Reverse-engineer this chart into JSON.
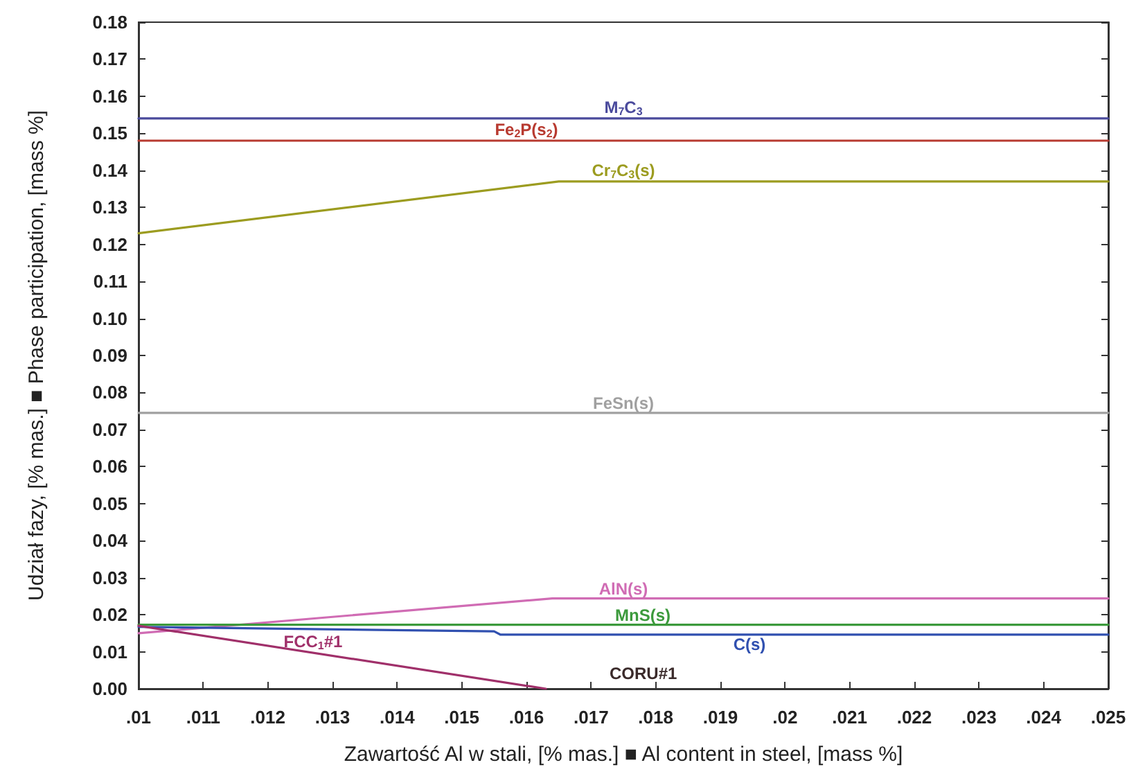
{
  "chart_data": {
    "type": "line",
    "xlabel": "Zawartość Al w stali, [% mas.] ■ Al content in steel, [mass %]",
    "ylabel": "Udział fazy, [% mas.] ■ Phase participation, [mass %]",
    "xlim": [
      0.01,
      0.025
    ],
    "xticks": [
      {
        "value": 0.01,
        "label": ".01"
      },
      {
        "value": 0.011,
        "label": ".011"
      },
      {
        "value": 0.012,
        "label": ".012"
      },
      {
        "value": 0.013,
        "label": ".013"
      },
      {
        "value": 0.014,
        "label": ".014"
      },
      {
        "value": 0.015,
        "label": ".015"
      },
      {
        "value": 0.016,
        "label": ".016"
      },
      {
        "value": 0.017,
        "label": ".017"
      },
      {
        "value": 0.018,
        "label": ".018"
      },
      {
        "value": 0.019,
        "label": ".019"
      },
      {
        "value": 0.02,
        "label": ".02"
      },
      {
        "value": 0.021,
        "label": ".021"
      },
      {
        "value": 0.022,
        "label": ".022"
      },
      {
        "value": 0.023,
        "label": ".023"
      },
      {
        "value": 0.024,
        "label": ".024"
      },
      {
        "value": 0.025,
        "label": ".025"
      }
    ],
    "ylim": [
      0,
      0.18
    ],
    "yticks": [
      {
        "value": 0,
        "label": "0.00"
      },
      0.01,
      0.02,
      0.03,
      0.04,
      0.05,
      0.06,
      0.07,
      0.08,
      0.09,
      {
        "value": 0.1,
        "label": "0.10"
      },
      0.11,
      0.12,
      0.13,
      0.14,
      0.15,
      0.16,
      0.17,
      0.18
    ],
    "grid": false,
    "legend": false,
    "marker": "none",
    "line_style": "solid",
    "series": [
      {
        "name": "M$_{7}$C$_{3}$",
        "color": "#4a4a9c",
        "x": [
          0.01,
          0.025
        ],
        "values": [
          0.154,
          0.154
        ]
      },
      {
        "name": "Fe$_{2}$P(s$_{2}$)",
        "color": "#b83a30",
        "x": [
          0.01,
          0.025
        ],
        "values": [
          0.148,
          0.148
        ]
      },
      {
        "name": "Cr$_{7}$C$_{3}$(s)",
        "color": "#9c9c20",
        "x": [
          0.01,
          0.0165,
          0.025
        ],
        "values": [
          0.123,
          0.137,
          0.137
        ]
      },
      {
        "name": "FeSn(s)",
        "color": "#a0a0a0",
        "x": [
          0.01,
          0.025
        ],
        "values": [
          0.0745,
          0.0745
        ]
      },
      {
        "name": "AlN(s)",
        "color": "#d06cb4",
        "x": [
          0.01,
          0.0164,
          0.025
        ],
        "values": [
          0.015,
          0.0244,
          0.0244
        ]
      },
      {
        "name": "MnS(s)",
        "color": "#3c9a3c",
        "x": [
          0.01,
          0.025
        ],
        "values": [
          0.0173,
          0.0173
        ]
      },
      {
        "name": "C(s)",
        "color": "#3050b0",
        "x": [
          0.01,
          0.0155,
          0.0156,
          0.025
        ],
        "values": [
          0.0167,
          0.0155,
          0.0146,
          0.0146
        ]
      },
      {
        "name": "FCC$_{1}$#1",
        "color": "#a0306a",
        "x": [
          0.01,
          0.0163
        ],
        "values": [
          0.017,
          0
        ]
      }
    ],
    "annotations": [
      "CORU#1"
    ]
  }
}
